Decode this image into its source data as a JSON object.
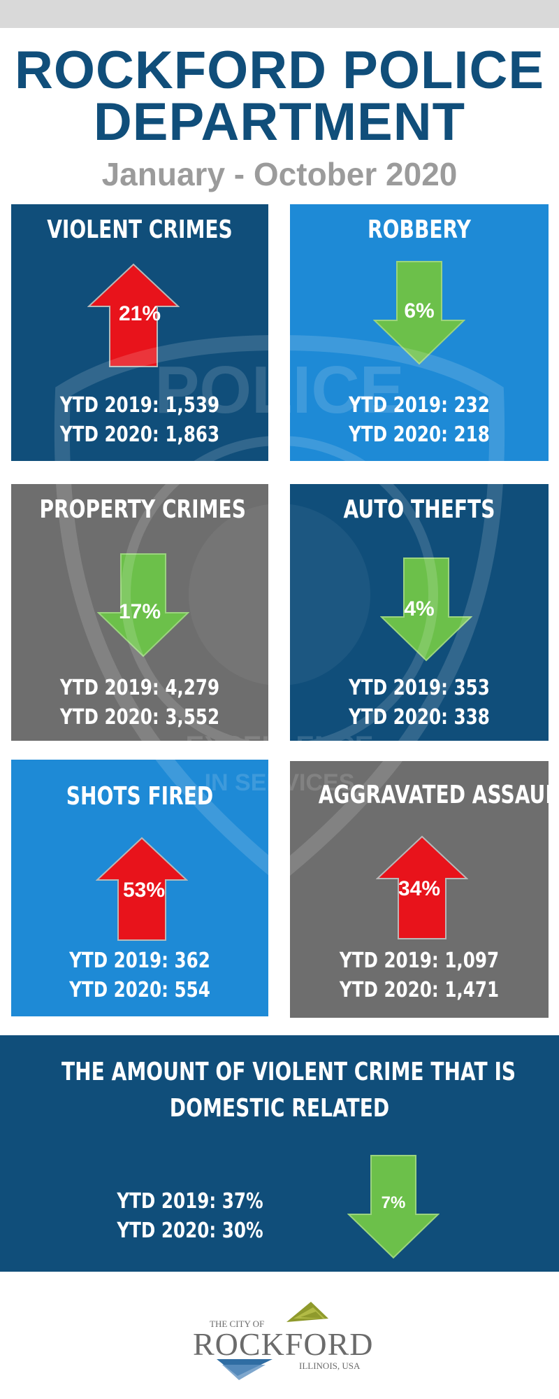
{
  "header": {
    "title_line1": "ROCKFORD POLICE",
    "title_line2": "DEPARTMENT",
    "subtitle": "January - October 2020"
  },
  "tiles": [
    {
      "title": "VIOLENT CRIMES",
      "direction": "up",
      "percent": "21%",
      "ytd2019": "YTD 2019: 1,539",
      "ytd2020": "YTD 2020: 1,863",
      "bg": "#104e7a"
    },
    {
      "title": "ROBBERY",
      "direction": "down",
      "percent": "6%",
      "ytd2019": "YTD 2019: 232",
      "ytd2020": "YTD 2020: 218",
      "bg": "#1e8ad6"
    },
    {
      "title": "PROPERTY CRIMES",
      "direction": "down",
      "percent": "17%",
      "ytd2019": "YTD 2019: 4,279",
      "ytd2020": "YTD 2020: 3,552",
      "bg": "#6e6e6e"
    },
    {
      "title": "AUTO THEFTS",
      "direction": "down",
      "percent": "4%",
      "ytd2019": "YTD 2019: 353",
      "ytd2020": "YTD 2020: 338",
      "bg": "#104e7a"
    },
    {
      "title": "SHOTS FIRED",
      "direction": "up",
      "percent": "53%",
      "ytd2019": "YTD 2019: 362",
      "ytd2020": "YTD 2020: 554",
      "bg": "#1e8ad6"
    },
    {
      "title": "AGGRAVATED ASSAULTS",
      "direction": "up",
      "percent": "34%",
      "ytd2019": "YTD 2019: 1,097",
      "ytd2020": "YTD 2020: 1,471",
      "bg": "#6e6e6e"
    }
  ],
  "domestic": {
    "title_line1": "THE AMOUNT OF VIOLENT CRIME THAT IS",
    "title_line2": "DOMESTIC RELATED",
    "ytd2019": "YTD 2019: 37%",
    "ytd2020": "YTD 2020: 30%",
    "direction": "down",
    "percent": "7%",
    "bg": "#104e7a"
  },
  "watermark": {
    "top_text": "POLICE",
    "motto_line1": "EXCELLENCE",
    "motto_line2": "IN SERVICES"
  },
  "footer": {
    "city_small": "THE CITY OF",
    "city_big": "ROCKFORD",
    "city_location": "ILLINOIS, USA"
  },
  "colors": {
    "up_arrow": "#e8131b",
    "down_arrow": "#6cc04a",
    "title_blue": "#104e7a",
    "subtitle_gray": "#9b9b9b"
  }
}
